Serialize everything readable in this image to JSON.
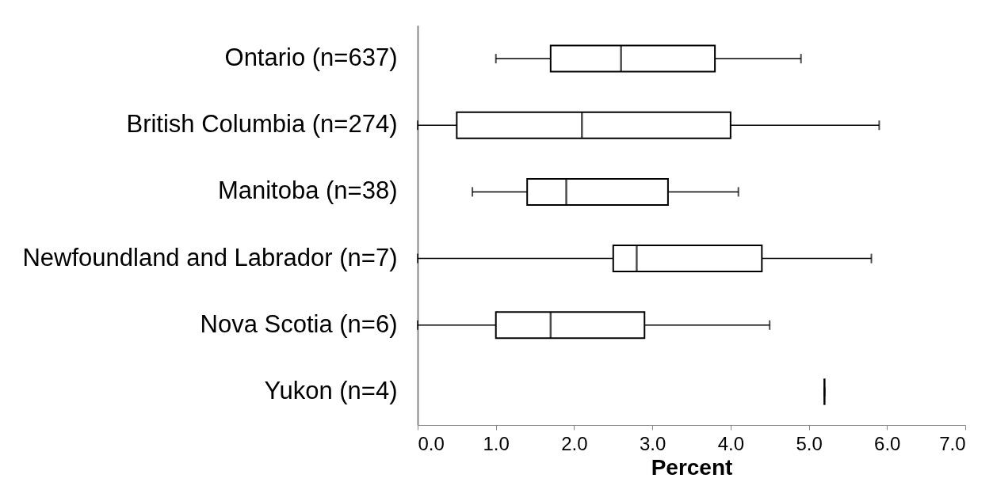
{
  "chart_data": {
    "type": "box",
    "orientation": "horizontal",
    "xlabel": "Percent",
    "categories": [
      "Ontario (n=637)",
      "British Columbia (n=274)",
      "Manitoba (n=38)",
      "Newfoundland and Labrador (n=7)",
      "Nova Scotia (n=6)",
      "Yukon (n=4)"
    ],
    "boxes": [
      {
        "low": 1.0,
        "q1": 1.7,
        "median": 2.6,
        "q3": 3.8,
        "high": 4.9
      },
      {
        "low": 0,
        "q1": 0.5,
        "median": 2.1,
        "q3": 4.0,
        "high": 5.9
      },
      {
        "low": 0.7,
        "q1": 1.4,
        "median": 1.9,
        "q3": 3.2,
        "high": 4.1
      },
      {
        "low": 0,
        "q1": 2.5,
        "median": 2.8,
        "q3": 4.4,
        "high": 5.8
      },
      {
        "low": 0,
        "q1": 1.0,
        "median": 1.7,
        "q3": 2.9,
        "high": 4.5
      },
      {
        "low": 5.2,
        "q1": 5.2,
        "median": 5.2,
        "q3": 5.2,
        "high": 5.2
      }
    ],
    "xlim": [
      0,
      7
    ],
    "xticks": [
      {
        "value": 0,
        "label": "0.0"
      },
      {
        "value": 1,
        "label": "1.0"
      },
      {
        "value": 2,
        "label": "2.0"
      },
      {
        "value": 3,
        "label": "3.0"
      },
      {
        "value": 4,
        "label": "4.0"
      },
      {
        "value": 5,
        "label": "5.0"
      },
      {
        "value": 6,
        "label": "6.0"
      },
      {
        "value": 7,
        "label": "7.0"
      }
    ],
    "grid": false
  }
}
